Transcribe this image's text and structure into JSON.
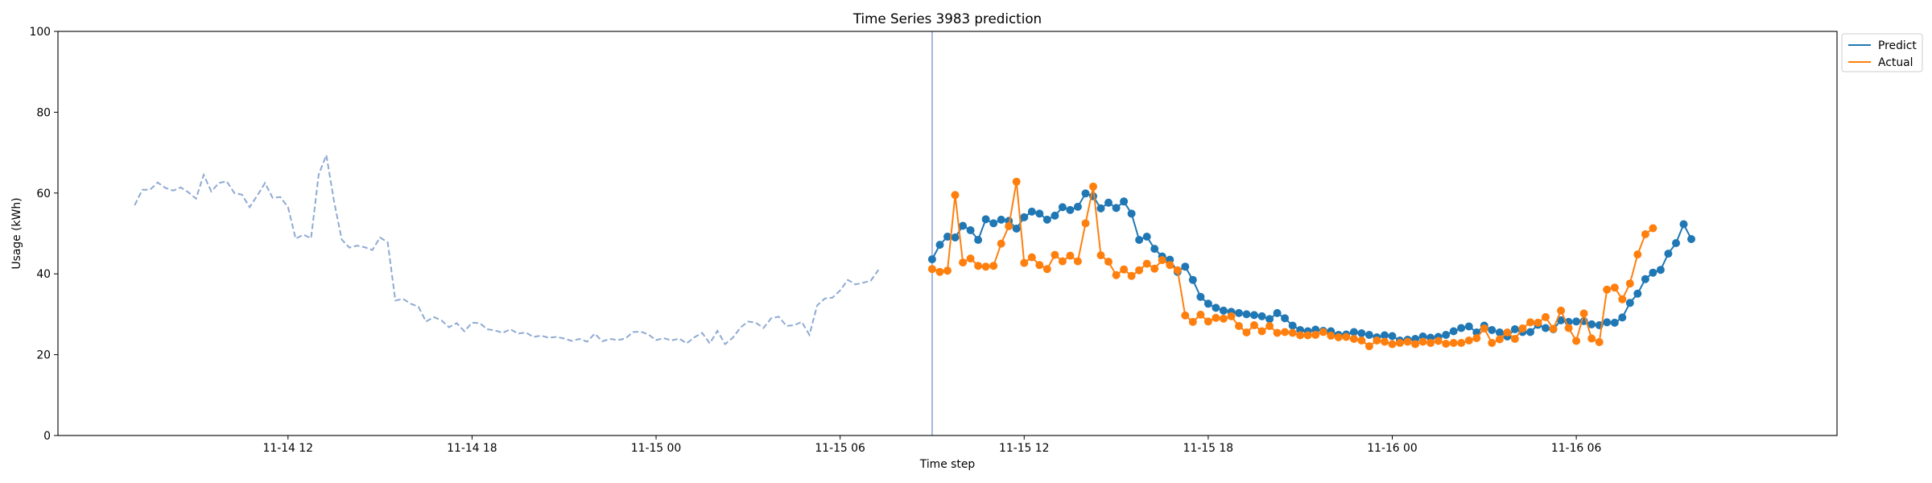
{
  "chart_data": {
    "type": "line",
    "title": "Time Series 3983 prediction",
    "xlabel": "Time step",
    "ylabel": "Usage (kWh)",
    "ylim": [
      0,
      100
    ],
    "yticks": [
      0,
      20,
      40,
      60,
      80,
      100
    ],
    "xlim": [
      "2024-11-14 04:30",
      "2024-11-16 14:30"
    ],
    "xticks": [
      {
        "at": "2024-11-14 12:00",
        "label": "11-14 12"
      },
      {
        "at": "2024-11-14 18:00",
        "label": "11-14 18"
      },
      {
        "at": "2024-11-15 00:00",
        "label": "11-15 00"
      },
      {
        "at": "2024-11-15 06:00",
        "label": "11-15 06"
      },
      {
        "at": "2024-11-15 12:00",
        "label": "11-15 12"
      },
      {
        "at": "2024-11-15 18:00",
        "label": "11-15 18"
      },
      {
        "at": "2024-11-16 00:00",
        "label": "11-16 00"
      },
      {
        "at": "2024-11-16 06:00",
        "label": "11-16 06"
      }
    ],
    "forecast_start": "2024-11-15 09:00",
    "legend": {
      "position": "top-right",
      "outside": true,
      "entries": [
        "Predict",
        "Actual"
      ]
    },
    "history": {
      "x_start": "2024-11-14 07:00",
      "step_minutes": 15,
      "color": "#8eaad2",
      "style": "dashed",
      "values": [
        57.0,
        60.8,
        60.8,
        62.6,
        61.3,
        60.6,
        61.4,
        60.2,
        58.6,
        64.5,
        60.4,
        62.5,
        62.9,
        60.0,
        59.6,
        56.5,
        59.4,
        62.5,
        58.8,
        59.0,
        56.5,
        48.7,
        49.7,
        48.8,
        64.6,
        69.4,
        58.0,
        48.5,
        46.5,
        47.0,
        46.6,
        45.9,
        49.0,
        47.8,
        33.4,
        33.8,
        32.6,
        31.9,
        28.2,
        29.3,
        28.5,
        26.8,
        27.8,
        25.8,
        27.9,
        27.8,
        26.3,
        26.0,
        25.4,
        26.3,
        25.2,
        25.5,
        24.4,
        24.7,
        24.2,
        24.4,
        24.0,
        23.4,
        23.9,
        23.2,
        25.2,
        23.3,
        23.9,
        23.6,
        24.0,
        25.6,
        25.7,
        25.0,
        23.6,
        24.1,
        23.5,
        24.0,
        22.8,
        24.3,
        25.4,
        22.8,
        25.9,
        22.6,
        24.2,
        26.7,
        28.2,
        27.9,
        26.6,
        29.0,
        29.4,
        27.1,
        27.3,
        28.1,
        24.9,
        32.2,
        33.9,
        34.1,
        35.9,
        38.5,
        37.4,
        37.8,
        38.3,
        41.0
      ]
    },
    "series": [
      {
        "name": "Predict",
        "color": "#1f77b4",
        "x_start": "2024-11-15 09:00",
        "step_minutes": 15,
        "values": [
          43.6,
          47.2,
          49.2,
          49.0,
          51.9,
          50.8,
          48.4,
          53.5,
          52.5,
          53.4,
          53.1,
          51.2,
          54.0,
          55.4,
          54.9,
          53.4,
          54.4,
          56.5,
          55.8,
          56.6,
          59.9,
          59.2,
          56.2,
          57.6,
          56.3,
          57.9,
          54.9,
          48.4,
          49.2,
          46.2,
          44.3,
          43.5,
          40.5,
          41.8,
          38.5,
          34.3,
          32.6,
          31.6,
          30.9,
          30.6,
          30.3,
          30.0,
          29.8,
          29.5,
          28.8,
          30.3,
          29.0,
          27.2,
          26.1,
          25.8,
          26.2,
          25.9,
          25.8,
          24.9,
          25.0,
          25.6,
          25.3,
          24.9,
          24.3,
          24.8,
          24.6,
          23.5,
          23.7,
          23.9,
          24.5,
          24.2,
          24.4,
          24.9,
          25.8,
          26.6,
          27.0,
          25.5,
          27.2,
          26.1,
          25.5,
          24.5,
          26.3,
          25.6,
          25.6,
          27.4,
          26.6,
          26.3,
          28.5,
          28.1,
          28.2,
          28.3,
          27.5,
          27.3,
          28.0,
          27.9,
          29.2,
          32.8,
          35.1,
          38.7,
          40.3,
          41.0,
          45.0,
          47.6,
          52.3,
          48.6
        ]
      },
      {
        "name": "Actual",
        "color": "#ff7f0e",
        "x_start": "2024-11-15 09:00",
        "step_minutes": 15,
        "values": [
          41.2,
          40.5,
          40.8,
          59.5,
          42.8,
          43.8,
          42.0,
          41.8,
          42.0,
          47.5,
          51.8,
          62.8,
          42.7,
          44.1,
          42.2,
          41.2,
          44.7,
          43.1,
          44.5,
          43.1,
          52.5,
          61.6,
          44.6,
          43.0,
          39.7,
          41.1,
          39.5,
          40.9,
          42.5,
          41.3,
          43.4,
          42.2,
          40.9,
          29.7,
          28.1,
          29.9,
          28.2,
          29.1,
          28.9,
          29.5,
          27.1,
          25.5,
          27.3,
          25.8,
          27.1,
          25.4,
          25.6,
          25.4,
          24.8,
          24.8,
          24.9,
          25.6,
          24.7,
          24.3,
          24.4,
          23.9,
          23.5,
          22.1,
          23.5,
          23.2,
          22.6,
          22.9,
          23.2,
          22.6,
          23.2,
          22.9,
          23.4,
          22.7,
          22.9,
          22.9,
          23.5,
          24.1,
          26.5,
          22.9,
          23.8,
          25.5,
          23.9,
          26.5,
          28.0,
          27.9,
          29.3,
          26.4,
          30.9,
          26.6,
          23.4,
          30.2,
          24.0,
          23.1,
          36.1,
          36.6,
          33.7,
          37.6,
          44.8,
          49.8,
          51.3
        ]
      }
    ]
  }
}
